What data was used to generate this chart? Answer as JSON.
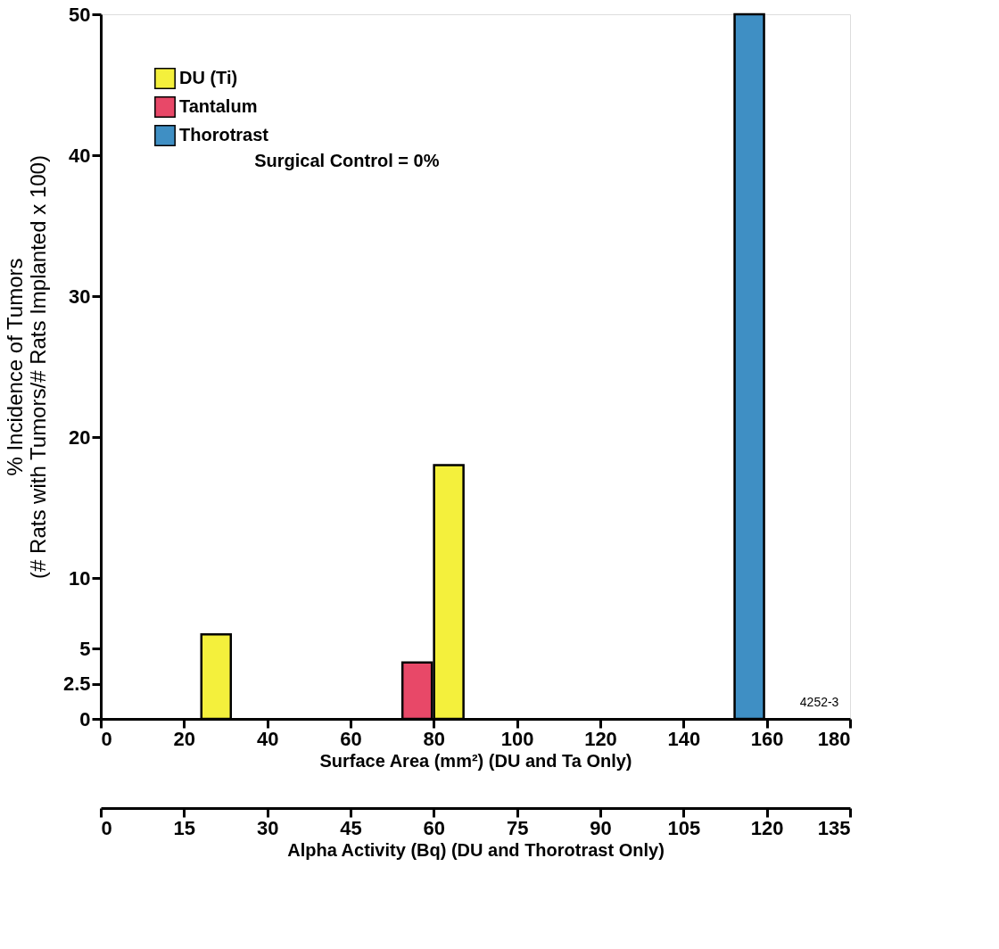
{
  "chart_data": {
    "type": "bar",
    "xlabel": "Surface Area (mm²) (DU and Ta Only)",
    "ylabel": "% Incidence of Tumors\n(# Rats with Tumors/# Rats Implanted x 100)",
    "x2label": "Alpha Activity (Bq) (DU and Thorotrast Only)",
    "series": [
      {
        "name": "DU (Ti)",
        "color": "#f4f03c",
        "x": [
          27.7,
          83.6
        ],
        "values": [
          6,
          18
        ]
      },
      {
        "name": "Tantalum",
        "color": "#e84868",
        "x": [
          76
        ],
        "values": [
          4
        ]
      },
      {
        "name": "Thorotrast",
        "color": "#3f8fc4",
        "x": [
          155.8
        ],
        "values": [
          50
        ]
      }
    ],
    "xlim": [
      0,
      180
    ],
    "xticks": [
      0,
      20,
      40,
      60,
      80,
      100,
      120,
      140,
      160,
      180
    ],
    "x2lim": [
      0,
      135
    ],
    "x2ticks": [
      0,
      15,
      30,
      45,
      60,
      75,
      90,
      105,
      120,
      135
    ],
    "ylim": [
      0,
      50
    ],
    "yticks": [
      0,
      2.5,
      5,
      10,
      20,
      30,
      40,
      50
    ],
    "annotations": [
      "Surgical Control = 0%",
      "4252-3"
    ],
    "legend": "top left",
    "grid": false
  }
}
